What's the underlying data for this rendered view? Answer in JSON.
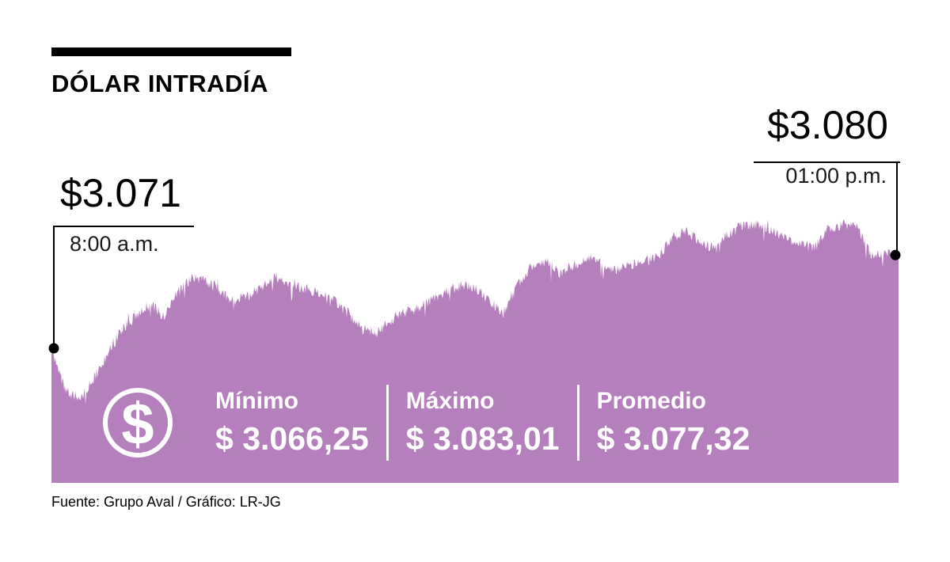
{
  "title": "DÓLAR INTRADÍA",
  "annotations": {
    "start": {
      "price": "$3.071",
      "time": "8:00 a.m."
    },
    "end": {
      "price": "$3.080",
      "time": "01:00 p.m."
    }
  },
  "stats": [
    {
      "label": "Mínimo",
      "value": "$ 3.066,25"
    },
    {
      "label": "Máximo",
      "value": "$ 3.083,01"
    },
    {
      "label": "Promedio",
      "value": "$ 3.077,32"
    }
  ],
  "footer": "Fuente: Grupo Aval / Gráfico: LR-JG",
  "colors": {
    "area": "#b57ebc",
    "ink": "#000000",
    "text_on_area": "#ffffff"
  },
  "chart_data": {
    "type": "area",
    "title": "DÓLAR INTRADÍA",
    "x_start_label": "8:00 a.m.",
    "x_end_label": "01:00 p.m.",
    "start_value": 3071,
    "end_value": 3080,
    "min": 3066.25,
    "max": 3083.01,
    "avg": 3077.32,
    "ylim": [
      3058,
      3084
    ],
    "grid": false,
    "legend": "none",
    "values": [
      3071.0,
      3066.8,
      3066.3,
      3068.0,
      3070.5,
      3072.9,
      3074.1,
      3075.2,
      3074.1,
      3076.4,
      3077.9,
      3077.5,
      3076.4,
      3075.6,
      3076.0,
      3077.1,
      3077.9,
      3077.1,
      3076.7,
      3076.4,
      3075.6,
      3074.4,
      3072.9,
      3072.5,
      3073.7,
      3074.4,
      3075.0,
      3075.7,
      3076.5,
      3077.1,
      3076.7,
      3075.7,
      3074.4,
      3077.1,
      3079.0,
      3079.4,
      3078.3,
      3079.0,
      3079.8,
      3079.0,
      3078.6,
      3079.0,
      3079.4,
      3079.8,
      3081.7,
      3082.3,
      3081.3,
      3080.6,
      3082.1,
      3082.9,
      3083.0,
      3082.5,
      3081.7,
      3081.1,
      3080.6,
      3082.5,
      3083.0,
      3082.7,
      3080.2,
      3080.3,
      3080.0
    ]
  }
}
